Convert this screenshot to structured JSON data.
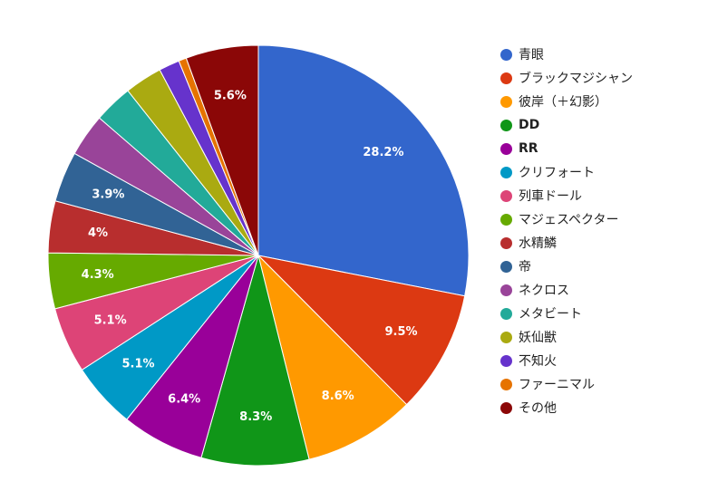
{
  "chart_data": {
    "type": "pie",
    "title": "",
    "legend_position": "right",
    "start_angle_deg": 0,
    "direction": "clockwise",
    "slices": [
      {
        "label": "青眼",
        "value": 28.2,
        "display": "28.2%",
        "color": "#3366cc",
        "label_bold": false
      },
      {
        "label": "ブラックマジシャン",
        "value": 9.5,
        "display": "9.5%",
        "color": "#dc3912",
        "label_bold": false
      },
      {
        "label": "彼岸（＋幻影）",
        "value": 8.6,
        "display": "8.6%",
        "color": "#ff9900",
        "label_bold": false
      },
      {
        "label": "DD",
        "value": 8.3,
        "display": "8.3%",
        "color": "#109618",
        "label_bold": true
      },
      {
        "label": "RR",
        "value": 6.4,
        "display": "6.4%",
        "color": "#990099",
        "label_bold": true
      },
      {
        "label": "クリフォート",
        "value": 5.1,
        "display": "5.1%",
        "color": "#0099c6",
        "label_bold": false
      },
      {
        "label": "列車ドール",
        "value": 5.1,
        "display": "5.1%",
        "color": "#dd4477",
        "label_bold": false
      },
      {
        "label": "マジェスペクター",
        "value": 4.3,
        "display": "4.3%",
        "color": "#66aa00",
        "label_bold": false
      },
      {
        "label": "水精鱗",
        "value": 4.0,
        "display": "4%",
        "color": "#b82e2e",
        "label_bold": false
      },
      {
        "label": "帝",
        "value": 3.9,
        "display": "3.9%",
        "color": "#316395",
        "label_bold": false
      },
      {
        "label": "ネクロス",
        "value": 3.3,
        "display": "",
        "color": "#994499",
        "label_bold": false
      },
      {
        "label": "メタビート",
        "value": 3.0,
        "display": "",
        "color": "#22aa99",
        "label_bold": false
      },
      {
        "label": "妖仙獣",
        "value": 2.9,
        "display": "",
        "color": "#aaaa11",
        "label_bold": false
      },
      {
        "label": "不知火",
        "value": 1.6,
        "display": "",
        "color": "#6633cc",
        "label_bold": false
      },
      {
        "label": "ファーニマル",
        "value": 0.6,
        "display": "",
        "color": "#e67300",
        "label_bold": false
      },
      {
        "label": "その他",
        "value": 5.6,
        "display": "5.6%",
        "color": "#8b0707",
        "label_bold": false
      }
    ]
  }
}
